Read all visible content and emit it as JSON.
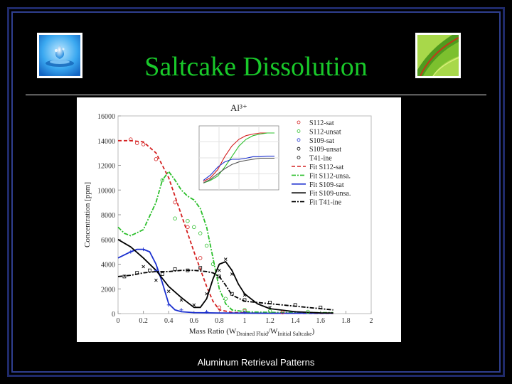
{
  "slide": {
    "title": "Saltcake Dissolution",
    "footer": "Aluminum Retrieval Patterns"
  },
  "images": {
    "left": "water-drop-icon",
    "right": "green-leaf-icon"
  },
  "chart_data": {
    "type": "line",
    "title": "Al³⁺",
    "ylabel": "Concentration [ppm]",
    "xlabel_parts": [
      "Mass Ratio (W",
      "Drained Fluid",
      "/W",
      "Initial Saltcake",
      ")"
    ],
    "x_ticks": [
      "0",
      "0.2",
      "0.4",
      "0.6",
      "0.8",
      "1",
      "1.2",
      "1.4",
      "1.6",
      "1.8",
      "2"
    ],
    "y_ticks": [
      "0",
      "2000",
      "4000",
      "6000",
      "8000",
      "10000",
      "12000",
      "14000",
      "16000"
    ],
    "xlim": [
      0,
      2
    ],
    "ylim": [
      0,
      16000
    ],
    "legend_position": "top-right",
    "colors": {
      "S112-sat": "#d42020",
      "S112-unsat": "#2bbf2b",
      "S109-sat": "#1a2fcf",
      "S109-unsat": "#000000",
      "T41-ine": "#000000"
    },
    "legend": [
      {
        "label": "S112-sat",
        "kind": "marker",
        "color": "#d42020"
      },
      {
        "label": "S112-unsat",
        "kind": "marker",
        "color": "#2bbf2b"
      },
      {
        "label": "S109-sat",
        "kind": "marker",
        "color": "#1a2fcf"
      },
      {
        "label": "S109-unsat",
        "kind": "marker",
        "color": "#000000"
      },
      {
        "label": "T41-ine",
        "kind": "marker",
        "color": "#000000"
      },
      {
        "label": "Fit S112-sat",
        "kind": "line",
        "color": "#d42020",
        "dash": "5,3"
      },
      {
        "label": "Fit S112-unsa.",
        "kind": "line",
        "color": "#2bbf2b",
        "dash": "6,2,2,2"
      },
      {
        "label": "Fit S109-sat",
        "kind": "line",
        "color": "#1a2fcf",
        "dash": ""
      },
      {
        "label": "Fit S109-unsa.",
        "kind": "line",
        "color": "#000000",
        "dash": ""
      },
      {
        "label": "Fit T41-ine",
        "kind": "line",
        "color": "#000000",
        "dash": "6,2,2,2"
      }
    ],
    "series": [
      {
        "name": "Fit S112-sat",
        "color": "#d42020",
        "dash": "5,3",
        "x": [
          0,
          0.1,
          0.2,
          0.3,
          0.4,
          0.5,
          0.6,
          0.7,
          0.75,
          0.8,
          0.9,
          1.0,
          1.2,
          1.5,
          1.7
        ],
        "y": [
          14000,
          14000,
          13900,
          13000,
          11000,
          8000,
          5000,
          2200,
          1000,
          300,
          100,
          50,
          30,
          20,
          20
        ]
      },
      {
        "name": "Fit S112-unsa.",
        "color": "#2bbf2b",
        "dash": "6,2,2,2",
        "x": [
          0,
          0.05,
          0.1,
          0.2,
          0.3,
          0.35,
          0.4,
          0.45,
          0.5,
          0.55,
          0.6,
          0.65,
          0.7,
          0.75,
          0.8,
          0.85,
          0.9,
          1.0,
          1.2,
          1.5,
          1.7
        ],
        "y": [
          7000,
          6500,
          6300,
          6800,
          9000,
          10800,
          11500,
          10800,
          10000,
          9500,
          9200,
          8500,
          7000,
          4500,
          2000,
          800,
          300,
          150,
          100,
          80,
          80
        ]
      },
      {
        "name": "Fit S109-sat",
        "color": "#1a2fcf",
        "dash": "",
        "x": [
          0,
          0.1,
          0.15,
          0.2,
          0.25,
          0.3,
          0.35,
          0.4,
          0.45,
          0.5,
          0.6,
          0.8,
          1.0,
          1.2,
          1.5,
          1.7
        ],
        "y": [
          4500,
          5000,
          5200,
          5200,
          5000,
          4000,
          2500,
          800,
          300,
          150,
          80,
          50,
          40,
          30,
          30,
          30
        ]
      },
      {
        "name": "Fit S109-unsa.",
        "color": "#000000",
        "dash": "",
        "x": [
          0,
          0.1,
          0.2,
          0.3,
          0.4,
          0.5,
          0.55,
          0.6,
          0.65,
          0.7,
          0.75,
          0.8,
          0.85,
          0.9,
          0.95,
          1.0,
          1.1,
          1.2,
          1.4,
          1.6,
          1.7
        ],
        "y": [
          6000,
          5400,
          4500,
          3500,
          2200,
          1300,
          900,
          500,
          500,
          1200,
          2800,
          4000,
          4200,
          3500,
          2400,
          1600,
          800,
          400,
          150,
          60,
          50
        ]
      },
      {
        "name": "Fit T41-ine",
        "color": "#000000",
        "dash": "6,2,2,2",
        "x": [
          0,
          0.1,
          0.2,
          0.3,
          0.4,
          0.5,
          0.6,
          0.7,
          0.75,
          0.8,
          0.85,
          0.9,
          1.0,
          1.2,
          1.4,
          1.6,
          1.7
        ],
        "y": [
          3000,
          3100,
          3300,
          3400,
          3400,
          3500,
          3500,
          3400,
          3300,
          3000,
          2300,
          1500,
          1000,
          800,
          600,
          400,
          300
        ]
      }
    ],
    "scatter": [
      {
        "name": "S112-sat",
        "color": "#d42020",
        "shape": "circle",
        "points": [
          [
            0.1,
            14100
          ],
          [
            0.15,
            13800
          ],
          [
            0.2,
            13700
          ],
          [
            0.3,
            12500
          ],
          [
            0.45,
            9000
          ],
          [
            0.55,
            7000
          ],
          [
            0.65,
            4500
          ],
          [
            0.8,
            500
          ],
          [
            1.0,
            200
          ],
          [
            1.3,
            100
          ]
        ]
      },
      {
        "name": "S112-unsat",
        "color": "#2bbf2b",
        "shape": "circle",
        "points": [
          [
            0.35,
            10800
          ],
          [
            0.45,
            7700
          ],
          [
            0.55,
            7500
          ],
          [
            0.6,
            7000
          ],
          [
            0.65,
            6500
          ],
          [
            0.7,
            5500
          ],
          [
            0.75,
            4000
          ],
          [
            0.85,
            1200
          ],
          [
            1.0,
            300
          ],
          [
            1.2,
            200
          ],
          [
            1.5,
            150
          ]
        ]
      },
      {
        "name": "S109-sat",
        "color": "#1a2fcf",
        "shape": "plus",
        "points": [
          [
            0.1,
            5000
          ],
          [
            0.2,
            5200
          ],
          [
            0.3,
            3500
          ],
          [
            0.4,
            700
          ],
          [
            0.5,
            300
          ],
          [
            0.7,
            150
          ],
          [
            1.0,
            100
          ]
        ]
      },
      {
        "name": "S109-unsat",
        "color": "#000000",
        "shape": "x",
        "points": [
          [
            0.2,
            3800
          ],
          [
            0.3,
            2700
          ],
          [
            0.4,
            1800
          ],
          [
            0.5,
            1100
          ],
          [
            0.6,
            700
          ],
          [
            0.7,
            1600
          ],
          [
            0.8,
            3500
          ],
          [
            0.85,
            4400
          ],
          [
            0.9,
            3200
          ],
          [
            1.0,
            1500
          ],
          [
            1.2,
            500
          ]
        ]
      },
      {
        "name": "T41-ine",
        "color": "#000000",
        "shape": "square",
        "points": [
          [
            0.05,
            3000
          ],
          [
            0.15,
            3300
          ],
          [
            0.25,
            3500
          ],
          [
            0.35,
            3200
          ],
          [
            0.45,
            3600
          ],
          [
            0.55,
            3500
          ],
          [
            0.65,
            3700
          ],
          [
            0.8,
            3000
          ],
          [
            0.9,
            1600
          ],
          [
            1.0,
            1100
          ],
          [
            1.2,
            900
          ],
          [
            1.4,
            700
          ],
          [
            1.6,
            500
          ]
        ]
      }
    ],
    "inset": {
      "description_free": true,
      "lines": [
        {
          "color": "#d42020",
          "y": [
            0.08,
            0.15,
            0.3,
            0.55,
            0.75,
            0.88,
            0.95,
            0.98,
            1.0,
            1.0,
            1.0
          ]
        },
        {
          "color": "#2bbf2b",
          "y": [
            0.05,
            0.1,
            0.18,
            0.35,
            0.55,
            0.75,
            0.88,
            0.95,
            0.98,
            1.0,
            1.0
          ]
        },
        {
          "color": "#1a2fcf",
          "y": [
            0.1,
            0.2,
            0.35,
            0.45,
            0.5,
            0.5,
            0.52,
            0.55,
            0.55,
            0.56,
            0.56
          ]
        },
        {
          "color": "#555555",
          "y": [
            0.05,
            0.12,
            0.22,
            0.32,
            0.4,
            0.45,
            0.48,
            0.5,
            0.52,
            0.52,
            0.52
          ]
        }
      ]
    }
  }
}
